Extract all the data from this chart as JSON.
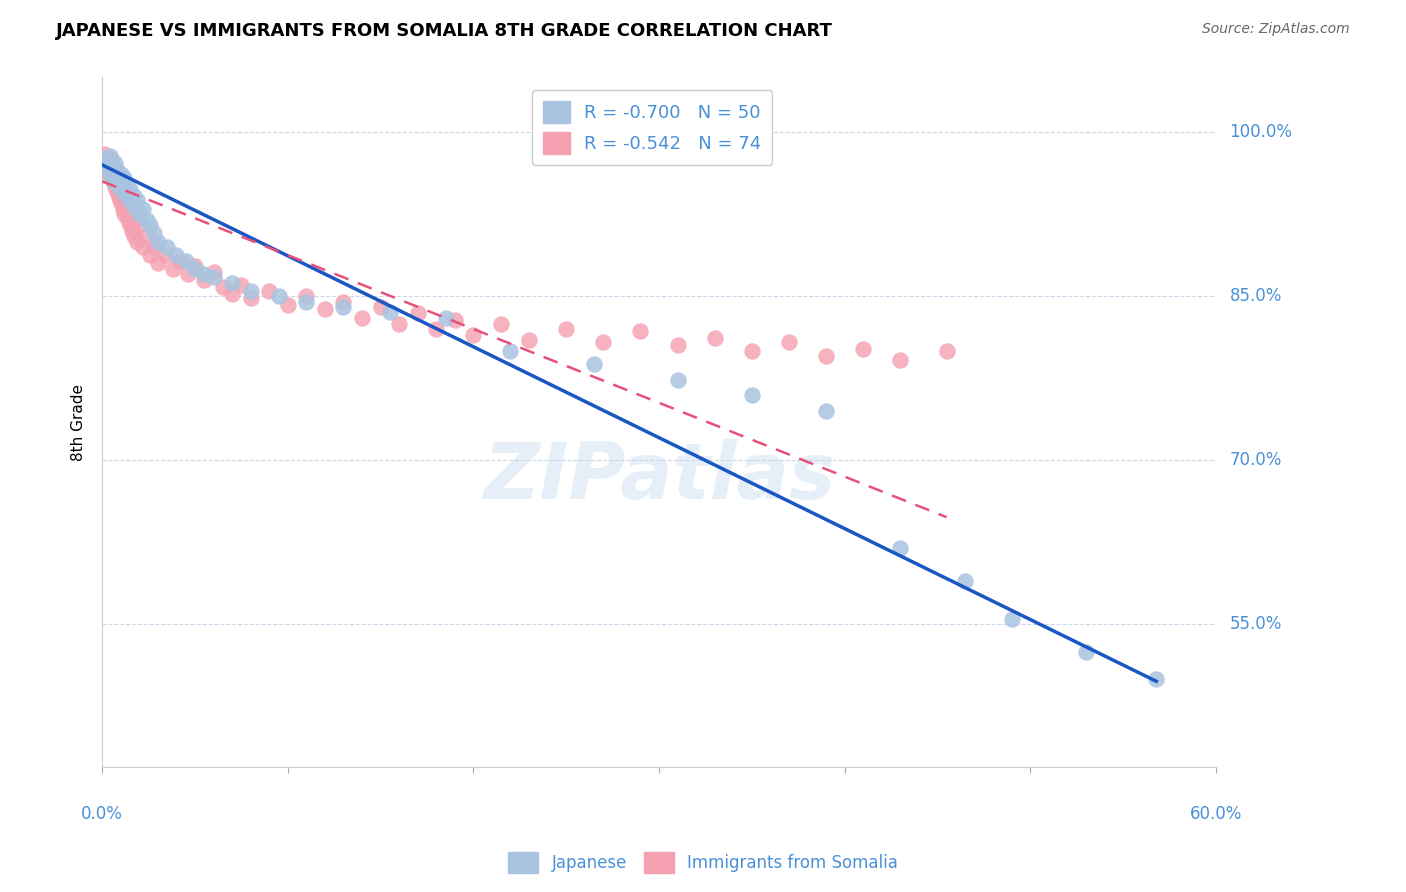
{
  "title": "JAPANESE VS IMMIGRANTS FROM SOMALIA 8TH GRADE CORRELATION CHART",
  "source": "Source: ZipAtlas.com",
  "ylabel": "8th Grade",
  "ytick_labels": [
    "100.0%",
    "85.0%",
    "70.0%",
    "55.0%"
  ],
  "ytick_values": [
    1.0,
    0.85,
    0.7,
    0.55
  ],
  "xlim": [
    0.0,
    0.6
  ],
  "ylim": [
    0.42,
    1.05
  ],
  "R_blue": -0.7,
  "N_blue": 50,
  "R_pink": -0.542,
  "N_pink": 74,
  "blue_color": "#a8c4e0",
  "pink_color": "#f4a0b0",
  "blue_line_color": "#1a56c4",
  "pink_line_color": "#e8507a",
  "text_color": "#4a90d9",
  "grid_color": "#c8d8e8",
  "watermark": "ZIPatlas",
  "blue_scatter": [
    [
      0.001,
      0.975
    ],
    [
      0.002,
      0.968
    ],
    [
      0.003,
      0.971
    ],
    [
      0.004,
      0.965
    ],
    [
      0.004,
      0.978
    ],
    [
      0.005,
      0.96
    ],
    [
      0.006,
      0.955
    ],
    [
      0.007,
      0.972
    ],
    [
      0.007,
      0.958
    ],
    [
      0.008,
      0.965
    ],
    [
      0.009,
      0.95
    ],
    [
      0.01,
      0.962
    ],
    [
      0.011,
      0.945
    ],
    [
      0.012,
      0.958
    ],
    [
      0.013,
      0.952
    ],
    [
      0.014,
      0.94
    ],
    [
      0.015,
      0.948
    ],
    [
      0.016,
      0.935
    ],
    [
      0.017,
      0.942
    ],
    [
      0.018,
      0.93
    ],
    [
      0.019,
      0.938
    ],
    [
      0.02,
      0.925
    ],
    [
      0.022,
      0.93
    ],
    [
      0.024,
      0.92
    ],
    [
      0.026,
      0.915
    ],
    [
      0.028,
      0.908
    ],
    [
      0.03,
      0.9
    ],
    [
      0.035,
      0.895
    ],
    [
      0.04,
      0.888
    ],
    [
      0.045,
      0.882
    ],
    [
      0.05,
      0.875
    ],
    [
      0.055,
      0.87
    ],
    [
      0.06,
      0.868
    ],
    [
      0.07,
      0.862
    ],
    [
      0.08,
      0.855
    ],
    [
      0.095,
      0.85
    ],
    [
      0.11,
      0.845
    ],
    [
      0.13,
      0.84
    ],
    [
      0.155,
      0.836
    ],
    [
      0.185,
      0.83
    ],
    [
      0.22,
      0.8
    ],
    [
      0.265,
      0.788
    ],
    [
      0.31,
      0.773
    ],
    [
      0.35,
      0.76
    ],
    [
      0.39,
      0.745
    ],
    [
      0.43,
      0.62
    ],
    [
      0.465,
      0.59
    ],
    [
      0.49,
      0.555
    ],
    [
      0.53,
      0.525
    ],
    [
      0.568,
      0.5
    ]
  ],
  "pink_scatter": [
    [
      0.001,
      0.98
    ],
    [
      0.002,
      0.975
    ],
    [
      0.002,
      0.968
    ],
    [
      0.003,
      0.972
    ],
    [
      0.003,
      0.965
    ],
    [
      0.004,
      0.97
    ],
    [
      0.004,
      0.96
    ],
    [
      0.005,
      0.975
    ],
    [
      0.005,
      0.962
    ],
    [
      0.006,
      0.968
    ],
    [
      0.006,
      0.955
    ],
    [
      0.007,
      0.965
    ],
    [
      0.007,
      0.958
    ],
    [
      0.007,
      0.95
    ],
    [
      0.008,
      0.96
    ],
    [
      0.008,
      0.945
    ],
    [
      0.009,
      0.955
    ],
    [
      0.009,
      0.94
    ],
    [
      0.01,
      0.95
    ],
    [
      0.01,
      0.942
    ],
    [
      0.01,
      0.935
    ],
    [
      0.011,
      0.945
    ],
    [
      0.011,
      0.93
    ],
    [
      0.012,
      0.94
    ],
    [
      0.012,
      0.925
    ],
    [
      0.013,
      0.935
    ],
    [
      0.014,
      0.92
    ],
    [
      0.015,
      0.915
    ],
    [
      0.016,
      0.91
    ],
    [
      0.017,
      0.905
    ],
    [
      0.018,
      0.92
    ],
    [
      0.019,
      0.9
    ],
    [
      0.02,
      0.915
    ],
    [
      0.022,
      0.895
    ],
    [
      0.024,
      0.905
    ],
    [
      0.026,
      0.888
    ],
    [
      0.028,
      0.895
    ],
    [
      0.03,
      0.88
    ],
    [
      0.034,
      0.888
    ],
    [
      0.038,
      0.875
    ],
    [
      0.042,
      0.882
    ],
    [
      0.046,
      0.87
    ],
    [
      0.05,
      0.878
    ],
    [
      0.055,
      0.865
    ],
    [
      0.06,
      0.872
    ],
    [
      0.065,
      0.858
    ],
    [
      0.07,
      0.852
    ],
    [
      0.075,
      0.86
    ],
    [
      0.08,
      0.848
    ],
    [
      0.09,
      0.855
    ],
    [
      0.1,
      0.842
    ],
    [
      0.11,
      0.85
    ],
    [
      0.12,
      0.838
    ],
    [
      0.13,
      0.845
    ],
    [
      0.14,
      0.83
    ],
    [
      0.15,
      0.84
    ],
    [
      0.16,
      0.825
    ],
    [
      0.17,
      0.835
    ],
    [
      0.18,
      0.82
    ],
    [
      0.19,
      0.828
    ],
    [
      0.2,
      0.815
    ],
    [
      0.215,
      0.825
    ],
    [
      0.23,
      0.81
    ],
    [
      0.25,
      0.82
    ],
    [
      0.27,
      0.808
    ],
    [
      0.29,
      0.818
    ],
    [
      0.31,
      0.805
    ],
    [
      0.33,
      0.812
    ],
    [
      0.35,
      0.8
    ],
    [
      0.37,
      0.808
    ],
    [
      0.39,
      0.795
    ],
    [
      0.41,
      0.802
    ],
    [
      0.43,
      0.792
    ],
    [
      0.455,
      0.8
    ]
  ],
  "blue_line": [
    [
      0.0,
      0.97
    ],
    [
      0.568,
      0.498
    ]
  ],
  "pink_line": [
    [
      0.0,
      0.955
    ],
    [
      0.455,
      0.648
    ]
  ]
}
